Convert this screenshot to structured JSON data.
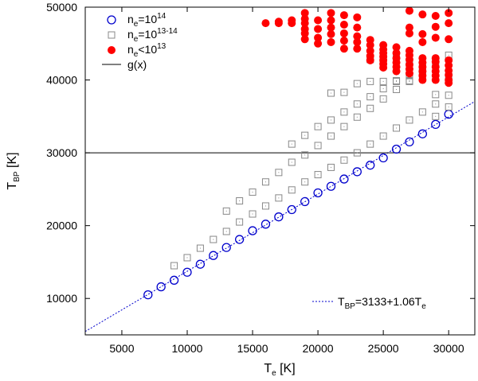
{
  "chart_data": {
    "type": "scatter",
    "xlabel": {
      "main": "T",
      "sub": "e",
      "unit": " [K]"
    },
    "ylabel": {
      "main": "T",
      "sub": "BP",
      "unit": " [K]"
    },
    "xlim": [
      2200,
      32000
    ],
    "ylim": [
      5000,
      50000
    ],
    "xticks": [
      5000,
      10000,
      15000,
      20000,
      25000,
      30000
    ],
    "yticks": [
      10000,
      20000,
      30000,
      40000,
      50000
    ],
    "legend_position": "top-left",
    "legend": [
      {
        "key": "ne14",
        "base": "n",
        "sub": "e",
        "op": "=10",
        "sup": "14"
      },
      {
        "key": "ne1314",
        "base": "n",
        "sub": "e",
        "op": "=10",
        "sup": "13-14"
      },
      {
        "key": "nelt13",
        "base": "n",
        "sub": "e",
        "op": "<10",
        "sup": "13"
      },
      {
        "key": "gx",
        "text": "g(x)"
      }
    ],
    "fit_label": {
      "main": "T",
      "sub": "BP",
      "rest": "=3133+1.06T",
      "sub2": "e"
    },
    "fit": {
      "intercept": 3133,
      "slope": 1.06
    },
    "hline": 30000,
    "colors": {
      "ne14": "#0000cc",
      "ne1314": "#888888",
      "nelt13": "#ff0000",
      "fit": "#0000cc",
      "hline": "#000000"
    },
    "series": [
      {
        "name": "ne14",
        "marker": "open-circle",
        "points": [
          [
            7000,
            10500
          ],
          [
            8000,
            11600
          ],
          [
            9000,
            12500
          ],
          [
            10000,
            13600
          ],
          [
            11000,
            14700
          ],
          [
            12000,
            15900
          ],
          [
            13000,
            17000
          ],
          [
            14000,
            18100
          ],
          [
            15000,
            19300
          ],
          [
            16000,
            20200
          ],
          [
            17000,
            21200
          ],
          [
            18000,
            22200
          ],
          [
            19000,
            23300
          ],
          [
            20000,
            24500
          ],
          [
            21000,
            25400
          ],
          [
            22000,
            26400
          ],
          [
            23000,
            27400
          ],
          [
            24000,
            28300
          ],
          [
            25000,
            29300
          ],
          [
            26000,
            30500
          ],
          [
            27000,
            31500
          ],
          [
            28000,
            32600
          ],
          [
            29000,
            33900
          ],
          [
            30000,
            35300
          ]
        ]
      },
      {
        "name": "ne1314",
        "marker": "open-square",
        "points": [
          [
            9000,
            14500
          ],
          [
            10000,
            15600
          ],
          [
            11000,
            16900
          ],
          [
            12000,
            18100
          ],
          [
            13000,
            19200
          ],
          [
            14000,
            20500
          ],
          [
            15000,
            21600
          ],
          [
            16000,
            22700
          ],
          [
            17000,
            23800
          ],
          [
            18000,
            24900
          ],
          [
            19000,
            26000
          ],
          [
            20000,
            27000
          ],
          [
            21000,
            28000
          ],
          [
            22000,
            29000
          ],
          [
            23000,
            30000
          ],
          [
            24000,
            31200
          ],
          [
            25000,
            32300
          ],
          [
            26000,
            33400
          ],
          [
            27000,
            34500
          ],
          [
            28000,
            35600
          ],
          [
            29000,
            36700
          ],
          [
            30000,
            37900
          ],
          [
            13000,
            22000
          ],
          [
            14000,
            23400
          ],
          [
            15000,
            24600
          ],
          [
            16000,
            26000
          ],
          [
            17000,
            27300
          ],
          [
            18000,
            28700
          ],
          [
            19000,
            29700
          ],
          [
            20000,
            31000
          ],
          [
            21000,
            32300
          ],
          [
            22000,
            33600
          ],
          [
            23000,
            34900
          ],
          [
            24000,
            36100
          ],
          [
            25000,
            37400
          ],
          [
            26000,
            38700
          ],
          [
            27000,
            39900
          ],
          [
            28000,
            41100
          ],
          [
            29000,
            42300
          ],
          [
            30000,
            43400
          ],
          [
            18000,
            31200
          ],
          [
            19000,
            32400
          ],
          [
            20000,
            33600
          ],
          [
            21000,
            34500
          ],
          [
            22000,
            35600
          ],
          [
            23000,
            36700
          ],
          [
            24000,
            37700
          ],
          [
            25000,
            38800
          ],
          [
            26000,
            39900
          ],
          [
            27000,
            40600
          ],
          [
            28000,
            41700
          ],
          [
            21000,
            38200
          ],
          [
            22000,
            38300
          ],
          [
            23000,
            39500
          ],
          [
            24000,
            39800
          ],
          [
            25000,
            39800
          ],
          [
            26000,
            39800
          ],
          [
            27000,
            39800
          ],
          [
            28000,
            40700
          ],
          [
            24000,
            42800
          ],
          [
            25000,
            43000
          ],
          [
            26000,
            43200
          ],
          [
            27000,
            42300
          ],
          [
            29000,
            35000
          ],
          [
            30000,
            36300
          ],
          [
            29000,
            38000
          ],
          [
            30000,
            40500
          ]
        ]
      },
      {
        "name": "nelt13",
        "marker": "filled-circle",
        "points": [
          [
            16000,
            47800
          ],
          [
            17000,
            47800
          ],
          [
            17000,
            48000
          ],
          [
            18000,
            47800
          ],
          [
            18000,
            48200
          ],
          [
            19000,
            47800
          ],
          [
            19000,
            47000
          ],
          [
            19000,
            46400
          ],
          [
            19000,
            45600
          ],
          [
            19000,
            49200
          ],
          [
            19000,
            48400
          ],
          [
            20000,
            48200
          ],
          [
            20000,
            47000
          ],
          [
            20000,
            45800
          ],
          [
            20000,
            45000
          ],
          [
            21000,
            49200
          ],
          [
            21000,
            48200
          ],
          [
            21000,
            47200
          ],
          [
            21000,
            46300
          ],
          [
            21000,
            45200
          ],
          [
            22000,
            48900
          ],
          [
            22000,
            47600
          ],
          [
            22000,
            46400
          ],
          [
            22000,
            45400
          ],
          [
            22000,
            44300
          ],
          [
            23000,
            48600
          ],
          [
            23000,
            47200
          ],
          [
            23000,
            46000
          ],
          [
            23000,
            45200
          ],
          [
            23000,
            44300
          ],
          [
            24000,
            45500
          ],
          [
            24000,
            44800
          ],
          [
            24000,
            44000
          ],
          [
            24000,
            43300
          ],
          [
            24000,
            42700
          ],
          [
            25000,
            44800
          ],
          [
            25000,
            44200
          ],
          [
            25000,
            43700
          ],
          [
            25000,
            43200
          ],
          [
            25000,
            42700
          ],
          [
            25000,
            42200
          ],
          [
            25000,
            41700
          ],
          [
            26000,
            44500
          ],
          [
            26000,
            43700
          ],
          [
            26000,
            43000
          ],
          [
            26000,
            42400
          ],
          [
            26000,
            41800
          ],
          [
            26000,
            41200
          ],
          [
            27000,
            49500
          ],
          [
            27000,
            47200
          ],
          [
            27000,
            46400
          ],
          [
            27000,
            44000
          ],
          [
            27000,
            43400
          ],
          [
            27000,
            42800
          ],
          [
            27000,
            42100
          ],
          [
            27000,
            41500
          ],
          [
            27000,
            40900
          ],
          [
            28000,
            49000
          ],
          [
            28000,
            46300
          ],
          [
            28000,
            45200
          ],
          [
            28000,
            43000
          ],
          [
            28000,
            42400
          ],
          [
            28000,
            41800
          ],
          [
            28000,
            41200
          ],
          [
            28000,
            40600
          ],
          [
            28000,
            40000
          ],
          [
            29000,
            48800
          ],
          [
            29000,
            47300
          ],
          [
            29000,
            45800
          ],
          [
            29000,
            43000
          ],
          [
            29000,
            42500
          ],
          [
            29000,
            41800
          ],
          [
            29000,
            41200
          ],
          [
            29000,
            40600
          ],
          [
            29000,
            40000
          ],
          [
            30000,
            49200
          ],
          [
            30000,
            47800
          ],
          [
            30000,
            45600
          ],
          [
            30000,
            42700
          ],
          [
            30000,
            42000
          ],
          [
            30000,
            41300
          ],
          [
            30000,
            40700
          ],
          [
            30000,
            40000
          ],
          [
            30000,
            39600
          ]
        ]
      }
    ]
  }
}
